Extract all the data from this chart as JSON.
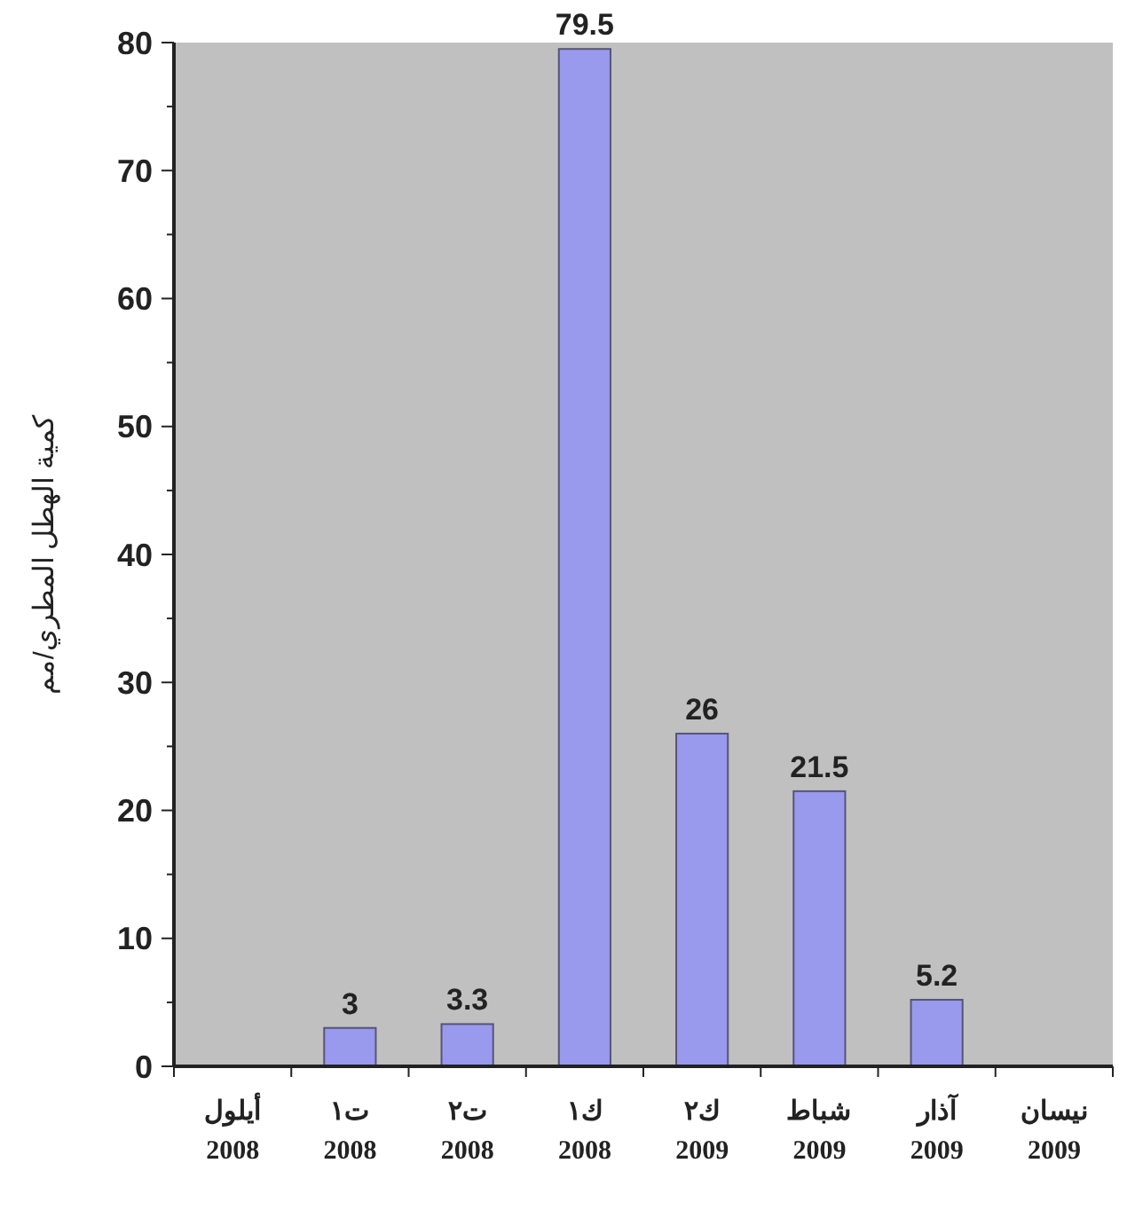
{
  "chart_data": {
    "type": "bar",
    "ylabel": "كمية الهطل المطري/مم",
    "categories": [
      "أيلول\n2008",
      "ت١\n2008",
      "ت٢\n2008",
      "ك١\n2008",
      "ك٢\n2009",
      "شباط\n2009",
      "آذار\n2009",
      "نيسان\n2009"
    ],
    "values": [
      0,
      3,
      3.3,
      79.5,
      26,
      21.5,
      5.2,
      0
    ],
    "value_labels": [
      null,
      "3",
      "3.3",
      "79.5",
      "26",
      "21.5",
      "5.2",
      null
    ],
    "color": "#9999ee",
    "ylim": [
      0,
      80
    ],
    "yticks": [
      0,
      {
        "value": 5,
        "label": null
      },
      10,
      {
        "value": 15,
        "label": null
      },
      20,
      {
        "value": 25,
        "label": null
      },
      30,
      {
        "value": 35,
        "label": null
      },
      40,
      {
        "value": 45,
        "label": null
      },
      50,
      {
        "value": 55,
        "label": null
      },
      60,
      {
        "value": 65,
        "label": null
      },
      70,
      {
        "value": 75,
        "label": null
      },
      80
    ],
    "grid": false
  }
}
